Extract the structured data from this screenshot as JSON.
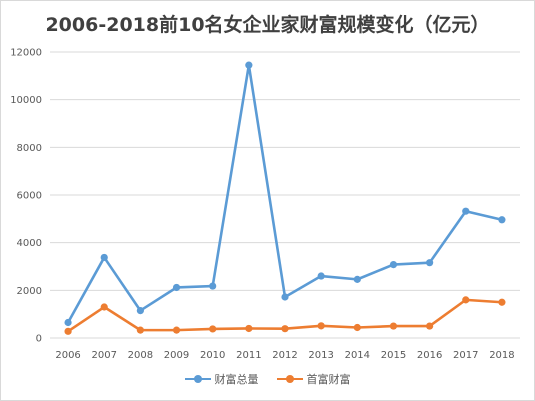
{
  "chart_data": {
    "type": "line",
    "title": "2006-2018前10名女企业家财富规模变化（亿元）",
    "x": [
      "2006",
      "2007",
      "2008",
      "2009",
      "2010",
      "2011",
      "2012",
      "2013",
      "2014",
      "2015",
      "2016",
      "2017",
      "2018"
    ],
    "ylim": [
      0,
      12000
    ],
    "yticks": [
      "0",
      "2000",
      "4000",
      "6000",
      "8000",
      "10000",
      "12000"
    ],
    "grid": true,
    "legend_position": "bottom",
    "series": [
      {
        "name": "财富总量",
        "color": "#5b9bd5",
        "values": [
          650,
          3380,
          1150,
          2120,
          2180,
          11450,
          1720,
          2600,
          2460,
          3080,
          3160,
          5320,
          4960
        ]
      },
      {
        "name": "首富财富",
        "color": "#ed7d31",
        "values": [
          280,
          1300,
          330,
          330,
          380,
          400,
          390,
          510,
          440,
          500,
          500,
          1600,
          1500
        ]
      }
    ]
  }
}
